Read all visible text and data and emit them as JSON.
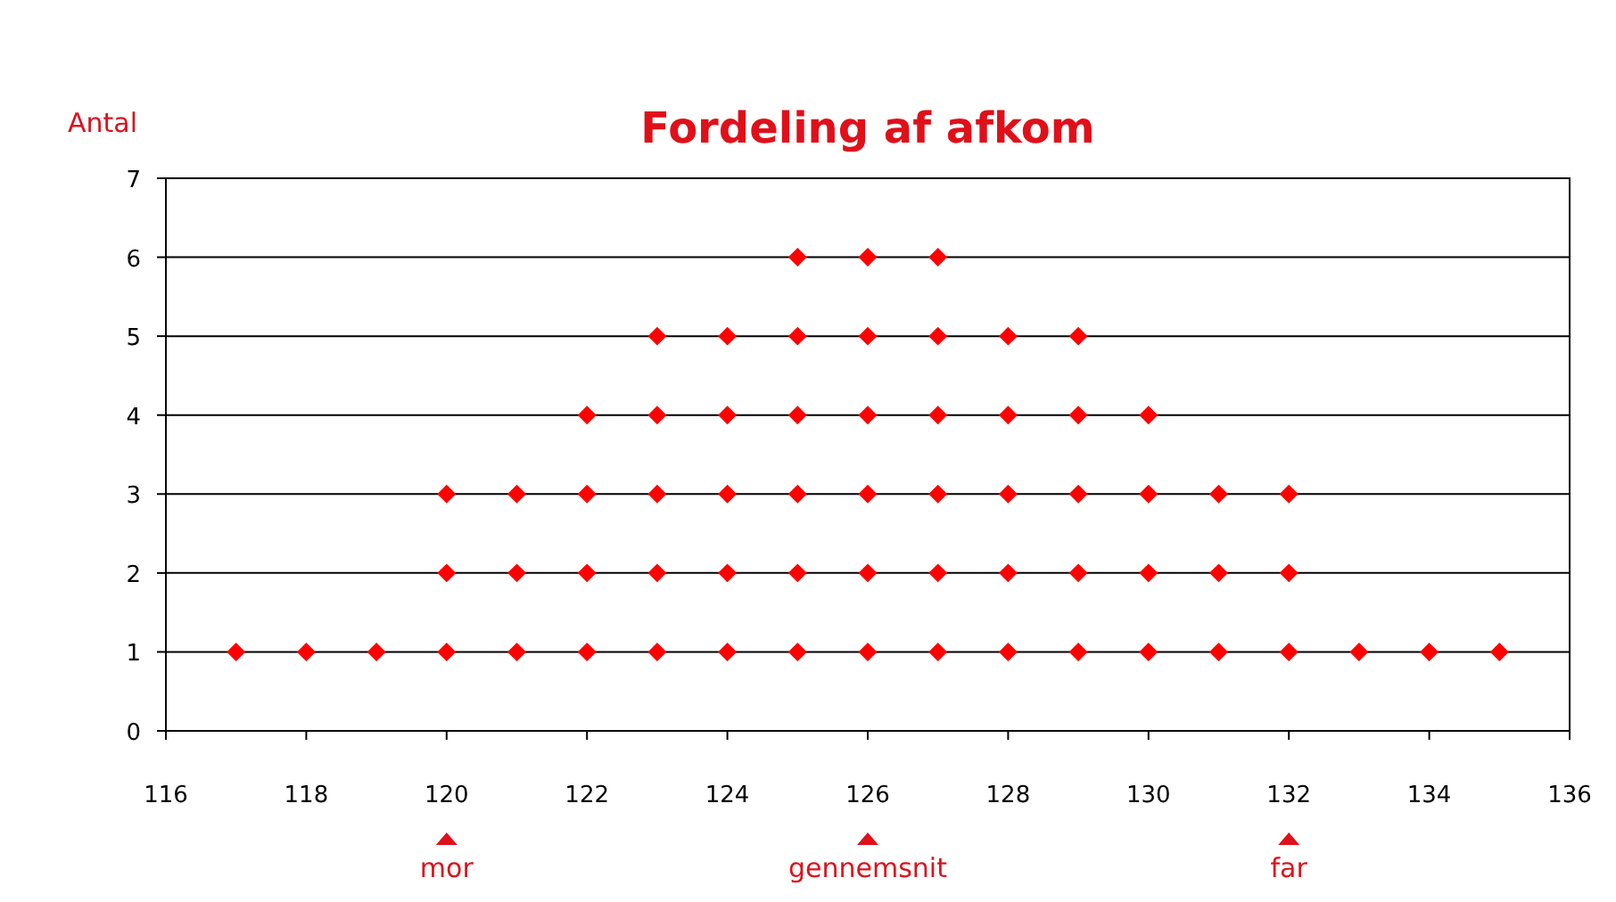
{
  "chart_data": {
    "type": "scatter",
    "title": "Fordeling af afkom",
    "ylabel": "Antal",
    "x": [
      117,
      118,
      119,
      120,
      120,
      120,
      121,
      121,
      121,
      122,
      122,
      122,
      122,
      123,
      123,
      123,
      123,
      123,
      124,
      124,
      124,
      124,
      124,
      125,
      125,
      125,
      125,
      125,
      125,
      126,
      126,
      126,
      126,
      126,
      126,
      127,
      127,
      127,
      127,
      127,
      127,
      128,
      128,
      128,
      128,
      128,
      129,
      129,
      129,
      129,
      129,
      130,
      130,
      130,
      130,
      131,
      131,
      131,
      132,
      132,
      132,
      133,
      134,
      135
    ],
    "series": [
      {
        "color": "#ff0000",
        "values": [
          1,
          1,
          1,
          1,
          2,
          3,
          1,
          2,
          3,
          1,
          2,
          3,
          4,
          1,
          2,
          3,
          4,
          5,
          1,
          2,
          3,
          4,
          5,
          1,
          2,
          3,
          4,
          5,
          6,
          1,
          2,
          3,
          4,
          5,
          6,
          1,
          2,
          3,
          4,
          5,
          6,
          1,
          2,
          3,
          4,
          5,
          1,
          2,
          3,
          4,
          5,
          1,
          2,
          3,
          4,
          1,
          2,
          3,
          1,
          2,
          3,
          1,
          1,
          1
        ]
      }
    ],
    "xlim": [
      116,
      136
    ],
    "xticks": [
      116,
      118,
      120,
      122,
      124,
      126,
      128,
      130,
      132,
      134,
      136
    ],
    "ylim": [
      0,
      7
    ],
    "yticks": [
      0,
      1,
      2,
      3,
      4,
      5,
      6,
      7
    ],
    "grid": "y",
    "marker": "diamond",
    "annotations": [
      "mor",
      "gennemsnit",
      "far"
    ]
  }
}
